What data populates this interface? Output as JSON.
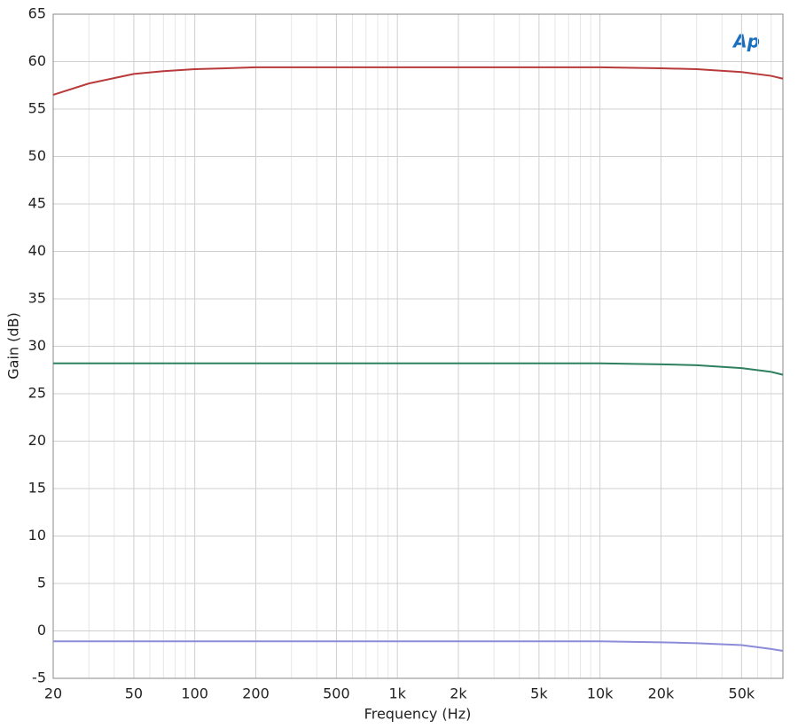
{
  "chart_data": {
    "type": "line",
    "xlabel": "Frequency (Hz)",
    "ylabel": "Gain (dB)",
    "logo": "Ap",
    "xscale": "log",
    "grid": true,
    "xlim": [
      20,
      80000
    ],
    "ylim": [
      -5,
      65
    ],
    "yticks": [
      -5,
      0,
      5,
      10,
      15,
      20,
      25,
      30,
      35,
      40,
      45,
      50,
      55,
      60,
      65
    ],
    "xticks": [
      20,
      50,
      100,
      200,
      500,
      {
        "value": 1000,
        "label": "1k"
      },
      {
        "value": 2000,
        "label": "2k"
      },
      {
        "value": 5000,
        "label": "5k"
      },
      {
        "value": 10000,
        "label": "10k"
      },
      {
        "value": 20000,
        "label": "20k"
      },
      {
        "value": 50000,
        "label": "50k"
      }
    ],
    "xminor": [
      30,
      40,
      60,
      70,
      80,
      90,
      300,
      400,
      600,
      700,
      800,
      900,
      3000,
      4000,
      6000,
      7000,
      8000,
      9000,
      30000,
      40000,
      60000,
      70000
    ],
    "x": [
      20,
      30,
      50,
      70,
      100,
      200,
      500,
      1000,
      2000,
      5000,
      10000,
      20000,
      30000,
      50000,
      70000,
      80000
    ],
    "series": [
      {
        "color": "#b83a3a",
        "values": [
          56.5,
          57.7,
          58.7,
          59.0,
          59.2,
          59.4,
          59.4,
          59.4,
          59.4,
          59.4,
          59.4,
          59.3,
          59.2,
          58.9,
          58.5,
          58.2
        ]
      },
      {
        "color": "#2e8060",
        "values": [
          28.2,
          28.2,
          28.2,
          28.2,
          28.2,
          28.2,
          28.2,
          28.2,
          28.2,
          28.2,
          28.2,
          28.1,
          28.0,
          27.7,
          27.3,
          27.0
        ]
      },
      {
        "color": "#8c8cd8",
        "values": [
          -1.1,
          -1.1,
          -1.1,
          -1.1,
          -1.1,
          -1.1,
          -1.1,
          -1.1,
          -1.1,
          -1.1,
          -1.1,
          -1.2,
          -1.3,
          -1.5,
          -1.9,
          -2.1
        ]
      }
    ]
  }
}
